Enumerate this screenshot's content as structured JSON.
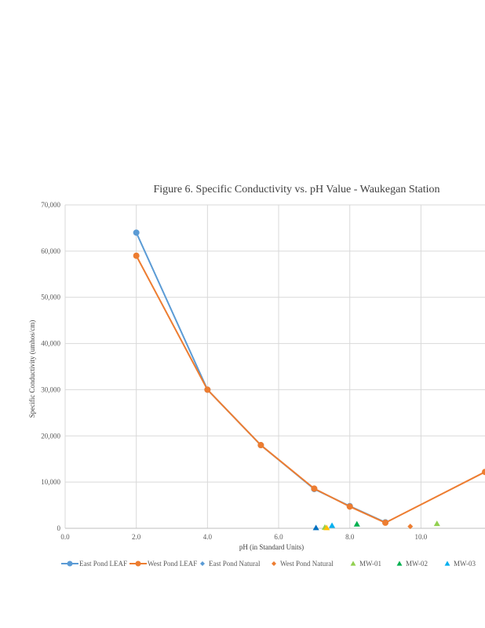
{
  "chart_data": {
    "type": "scatter",
    "title": "Figure 6. Specific Conductivity vs. pH Value - Waukegan  Station",
    "xlabel": "pH (in Standard Units)",
    "ylabel": "Specific Conductivity (umhos/cm)",
    "xlim": [
      0,
      11.8
    ],
    "ylim": [
      0,
      70000
    ],
    "x_ticks": [
      0,
      2,
      4,
      6,
      8,
      10
    ],
    "x_tick_labels": [
      "0.0",
      "2.0",
      "4.0",
      "6.0",
      "8.0",
      "10.0"
    ],
    "y_ticks": [
      0,
      10000,
      20000,
      30000,
      40000,
      50000,
      60000,
      70000
    ],
    "y_tick_labels": [
      "0",
      "10,000",
      "20,000",
      "30,000",
      "40,000",
      "50,000",
      "60,000",
      "70,000"
    ],
    "grid": true,
    "legend_position": "bottom",
    "series": [
      {
        "name": "East Pond LEAF",
        "kind": "line",
        "marker": "circle",
        "color": "#5B9BD5",
        "points": [
          [
            2.0,
            64000
          ],
          [
            4.0,
            30000
          ],
          [
            5.5,
            18000
          ],
          [
            7.0,
            8500
          ],
          [
            8.0,
            4800
          ],
          [
            9.0,
            1300
          ]
        ]
      },
      {
        "name": "West Pond LEAF",
        "kind": "line",
        "marker": "circle",
        "color": "#ED7D31",
        "points": [
          [
            2.0,
            59000
          ],
          [
            4.0,
            30000
          ],
          [
            5.5,
            18000
          ],
          [
            7.0,
            8600
          ],
          [
            8.0,
            4700
          ],
          [
            9.0,
            1200
          ],
          [
            11.8,
            12200
          ]
        ]
      },
      {
        "name": "East Pond Natural",
        "kind": "scatter",
        "marker": "diamond",
        "color": "#5B9BD5",
        "points": []
      },
      {
        "name": "West Pond Natural",
        "kind": "scatter",
        "marker": "diamond",
        "color": "#ED7D31",
        "points": [
          [
            9.7,
            400
          ]
        ]
      },
      {
        "name": "MW-01",
        "kind": "scatter",
        "marker": "triangle",
        "color": "#92D050",
        "points": [
          [
            7.3,
            200
          ],
          [
            10.45,
            1000
          ]
        ]
      },
      {
        "name": "MW-02",
        "kind": "scatter",
        "marker": "triangle",
        "color": "#00B050",
        "points": [
          [
            8.2,
            900
          ]
        ]
      },
      {
        "name": "MW-03",
        "kind": "scatter",
        "marker": "triangle",
        "color": "#00B0F0",
        "points": [
          [
            7.5,
            600
          ]
        ]
      },
      {
        "name": "",
        "kind": "scatter",
        "marker": "triangle",
        "color": "#0070C0",
        "points": [
          [
            7.05,
            100
          ]
        ]
      },
      {
        "name": "",
        "kind": "scatter",
        "marker": "triangle",
        "color": "#FFC000",
        "points": [
          [
            7.35,
            100
          ]
        ]
      }
    ],
    "legend": [
      {
        "name": "East Pond LEAF",
        "marker": "line-circle",
        "color": "#5B9BD5"
      },
      {
        "name": "West Pond LEAF",
        "marker": "line-circle",
        "color": "#ED7D31"
      },
      {
        "name": "East Pond Natural",
        "marker": "diamond",
        "color": "#5B9BD5"
      },
      {
        "name": "West Pond Natural",
        "marker": "diamond",
        "color": "#ED7D31"
      },
      {
        "name": "MW-01",
        "marker": "triangle",
        "color": "#92D050"
      },
      {
        "name": "MW-02",
        "marker": "triangle",
        "color": "#00B050"
      },
      {
        "name": "MW-03",
        "marker": "triangle",
        "color": "#00B0F0"
      }
    ]
  }
}
